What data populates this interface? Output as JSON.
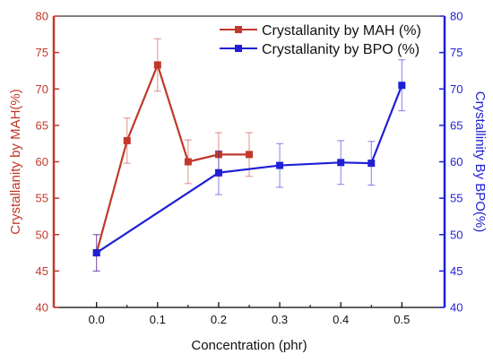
{
  "chart_data": {
    "type": "line",
    "x_axis": {
      "label": "Concentration (phr)",
      "ticks": [
        "0.0",
        "0.1",
        "0.2",
        "0.3",
        "0.4",
        "0.5"
      ],
      "range": [
        -0.07,
        0.57
      ]
    },
    "y_left": {
      "label": "Crystallanity by MAH(%)",
      "ticks": [
        "40",
        "45",
        "50",
        "55",
        "60",
        "65",
        "70",
        "75",
        "80"
      ],
      "range": [
        40,
        80
      ],
      "color": "#c0392b"
    },
    "y_right": {
      "label": "Crystallinity By BPO(%)",
      "ticks": [
        "40",
        "45",
        "50",
        "55",
        "60",
        "65",
        "70",
        "75",
        "80"
      ],
      "range": [
        40,
        80
      ],
      "color": "#1f1fd6"
    },
    "series": [
      {
        "name": "Crystallanity by MAH (%)",
        "color": "#c0392b",
        "axis": "left",
        "marker": "square",
        "points": [
          {
            "x": 0.0,
            "y": 47.5,
            "err": 2.5
          },
          {
            "x": 0.05,
            "y": 62.9,
            "err": 3.1
          },
          {
            "x": 0.1,
            "y": 73.3,
            "err": 3.6
          },
          {
            "x": 0.15,
            "y": 60.0,
            "err": 3.0
          },
          {
            "x": 0.2,
            "y": 61.0,
            "err": 3.0
          },
          {
            "x": 0.25,
            "y": 61.0,
            "err": 3.0
          }
        ]
      },
      {
        "name": "Crystallanity by BPO (%)",
        "color": "#1f1fd6",
        "axis": "right",
        "marker": "square",
        "points": [
          {
            "x": 0.0,
            "y": 47.5,
            "err": 2.5
          },
          {
            "x": 0.2,
            "y": 58.5,
            "err": 3.0
          },
          {
            "x": 0.3,
            "y": 59.5,
            "err": 3.0
          },
          {
            "x": 0.4,
            "y": 59.9,
            "err": 3.0
          },
          {
            "x": 0.45,
            "y": 59.8,
            "err": 3.0
          },
          {
            "x": 0.5,
            "y": 70.5,
            "err": 3.5
          }
        ]
      }
    ],
    "legend_position": "top-right",
    "grid": false
  }
}
